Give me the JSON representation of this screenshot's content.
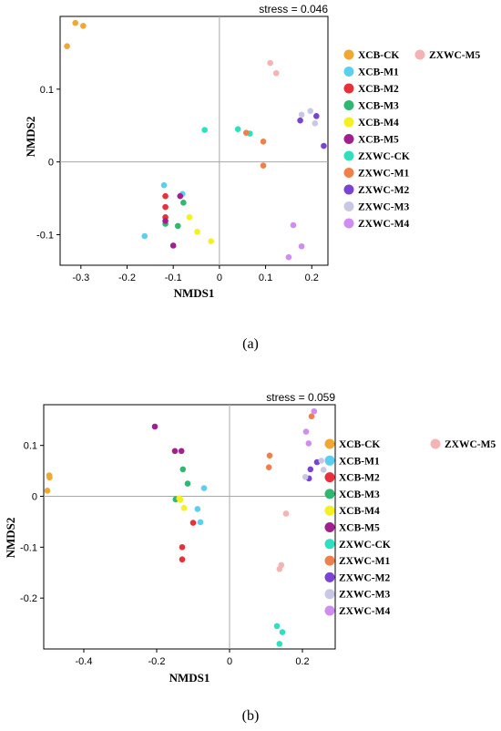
{
  "colors": {
    "XCB-CK": "#F0A830",
    "XCB-M1": "#5BCFF0",
    "XCB-M2": "#E8303A",
    "XCB-M3": "#2EB872",
    "XCB-M4": "#F5F020",
    "XCB-M5": "#A02090",
    "ZXWC-CK": "#2EE0C0",
    "ZXWC-M1": "#F0804A",
    "ZXWC-M2": "#7A44D0",
    "ZXWC-M3": "#C8C8E6",
    "ZXWC-M4": "#D08CF0",
    "ZXWC-M5": "#F4B4B4"
  },
  "chart_data": [
    {
      "type": "scatter",
      "panel_label": "(a)",
      "stress": "stress = 0.046",
      "xlabel": "NMDS1",
      "ylabel": "NMDS2",
      "xlim": [
        -0.345,
        0.235
      ],
      "ylim": [
        -0.142,
        0.2
      ],
      "xticks": [
        -0.3,
        -0.2,
        -0.1,
        0,
        0.1,
        0.2
      ],
      "xtick_labels": [
        "-0.3",
        "-0.2",
        "-0.1",
        "0",
        "0.1",
        "0.2"
      ],
      "yticks": [
        -0.1,
        0,
        0.1
      ],
      "ytick_labels": [
        "-0.1",
        "0",
        "0.1"
      ],
      "legend": [
        "XCB-CK",
        "XCB-M1",
        "XCB-M2",
        "XCB-M3",
        "XCB-M4",
        "XCB-M5",
        "ZXWC-CK",
        "ZXWC-M1",
        "ZXWC-M2",
        "ZXWC-M3",
        "ZXWC-M4",
        "ZXWC-M5"
      ],
      "series": [
        {
          "name": "XCB-CK",
          "points": [
            [
              -0.33,
              0.159
            ],
            [
              -0.312,
              0.191
            ],
            [
              -0.295,
              0.187
            ]
          ]
        },
        {
          "name": "XCB-M1",
          "points": [
            [
              -0.162,
              -0.102
            ],
            [
              -0.12,
              -0.032
            ],
            [
              -0.08,
              -0.044
            ]
          ]
        },
        {
          "name": "XCB-M2",
          "points": [
            [
              -0.117,
              -0.047
            ],
            [
              -0.117,
              -0.062
            ],
            [
              -0.117,
              -0.076
            ]
          ]
        },
        {
          "name": "XCB-M3",
          "points": [
            [
              -0.117,
              -0.085
            ],
            [
              -0.09,
              -0.088
            ],
            [
              -0.078,
              -0.056
            ]
          ]
        },
        {
          "name": "XCB-M4",
          "points": [
            [
              -0.065,
              -0.076
            ],
            [
              -0.048,
              -0.096
            ],
            [
              -0.018,
              -0.109
            ]
          ]
        },
        {
          "name": "XCB-M5",
          "points": [
            [
              -0.117,
              -0.081
            ],
            [
              -0.1,
              -0.115
            ],
            [
              -0.085,
              -0.047
            ]
          ]
        },
        {
          "name": "ZXWC-CK",
          "points": [
            [
              -0.032,
              0.044
            ],
            [
              0.04,
              0.045
            ],
            [
              0.066,
              0.039
            ]
          ]
        },
        {
          "name": "ZXWC-M1",
          "points": [
            [
              0.058,
              0.04
            ],
            [
              0.095,
              0.028
            ],
            [
              0.095,
              -0.005
            ]
          ]
        },
        {
          "name": "ZXWC-M2",
          "points": [
            [
              0.175,
              0.057
            ],
            [
              0.21,
              0.063
            ],
            [
              0.226,
              0.022
            ]
          ]
        },
        {
          "name": "ZXWC-M3",
          "points": [
            [
              0.178,
              0.065
            ],
            [
              0.197,
              0.07
            ],
            [
              0.207,
              0.053
            ]
          ]
        },
        {
          "name": "ZXWC-M4",
          "points": [
            [
              0.15,
              -0.131
            ],
            [
              0.16,
              -0.087
            ],
            [
              0.178,
              -0.116
            ]
          ]
        },
        {
          "name": "ZXWC-M5",
          "points": [
            [
              0.11,
              0.136
            ],
            [
              0.123,
              0.122
            ]
          ]
        }
      ]
    },
    {
      "type": "scatter",
      "panel_label": "(b)",
      "stress": "stress = 0.059",
      "xlabel": "NMDS1",
      "ylabel": "NMDS2",
      "xlim": [
        -0.51,
        0.29
      ],
      "ylim": [
        -0.3,
        0.18
      ],
      "xticks": [
        -0.4,
        -0.2,
        0,
        0.2
      ],
      "xtick_labels": [
        "-0.4",
        "-0.2",
        "0",
        "0.2"
      ],
      "yticks": [
        -0.2,
        -0.1,
        0,
        0.1
      ],
      "ytick_labels": [
        "-0.2",
        "-0.1",
        "0",
        "0.1"
      ],
      "legend": [
        "XCB-CK",
        "XCB-M1",
        "XCB-M2",
        "XCB-M3",
        "XCB-M4",
        "XCB-M5",
        "ZXWC-CK",
        "ZXWC-M1",
        "ZXWC-M2",
        "ZXWC-M3",
        "ZXWC-M4",
        "ZXWC-M5"
      ],
      "series": [
        {
          "name": "XCB-CK",
          "points": [
            [
              -0.495,
              0.041
            ],
            [
              -0.494,
              0.037
            ],
            [
              -0.5,
              0.011
            ]
          ]
        },
        {
          "name": "XCB-M1",
          "points": [
            [
              -0.07,
              0.016
            ],
            [
              -0.088,
              -0.025
            ],
            [
              -0.08,
              -0.051
            ]
          ]
        },
        {
          "name": "XCB-M2",
          "points": [
            [
              -0.1,
              -0.052
            ],
            [
              -0.13,
              -0.1
            ],
            [
              -0.13,
              -0.124
            ]
          ]
        },
        {
          "name": "XCB-M3",
          "points": [
            [
              -0.128,
              0.053
            ],
            [
              -0.115,
              0.025
            ],
            [
              -0.148,
              -0.006
            ]
          ]
        },
        {
          "name": "XCB-M4",
          "points": [
            [
              -0.135,
              -0.007
            ],
            [
              -0.125,
              -0.023
            ],
            [
              -0.138,
              -0.004
            ]
          ]
        },
        {
          "name": "XCB-M5",
          "points": [
            [
              -0.205,
              0.137
            ],
            [
              -0.15,
              0.089
            ],
            [
              -0.132,
              0.089
            ]
          ]
        },
        {
          "name": "ZXWC-CK",
          "points": [
            [
              0.13,
              -0.255
            ],
            [
              0.145,
              -0.267
            ],
            [
              0.137,
              -0.29
            ]
          ]
        },
        {
          "name": "ZXWC-M1",
          "points": [
            [
              0.225,
              0.157
            ],
            [
              0.11,
              0.08
            ],
            [
              0.108,
              0.057
            ]
          ]
        },
        {
          "name": "ZXWC-M2",
          "points": [
            [
              0.24,
              0.067
            ],
            [
              0.222,
              0.053
            ],
            [
              0.218,
              0.035
            ]
          ]
        },
        {
          "name": "ZXWC-M3",
          "points": [
            [
              0.252,
              0.07
            ],
            [
              0.258,
              0.052
            ],
            [
              0.208,
              0.038
            ]
          ]
        },
        {
          "name": "ZXWC-M4",
          "points": [
            [
              0.232,
              0.167
            ],
            [
              0.21,
              0.127
            ],
            [
              0.217,
              0.104
            ]
          ]
        },
        {
          "name": "ZXWC-M5",
          "points": [
            [
              0.155,
              -0.034
            ],
            [
              0.142,
              -0.135
            ],
            [
              0.137,
              -0.143
            ]
          ]
        }
      ]
    }
  ]
}
